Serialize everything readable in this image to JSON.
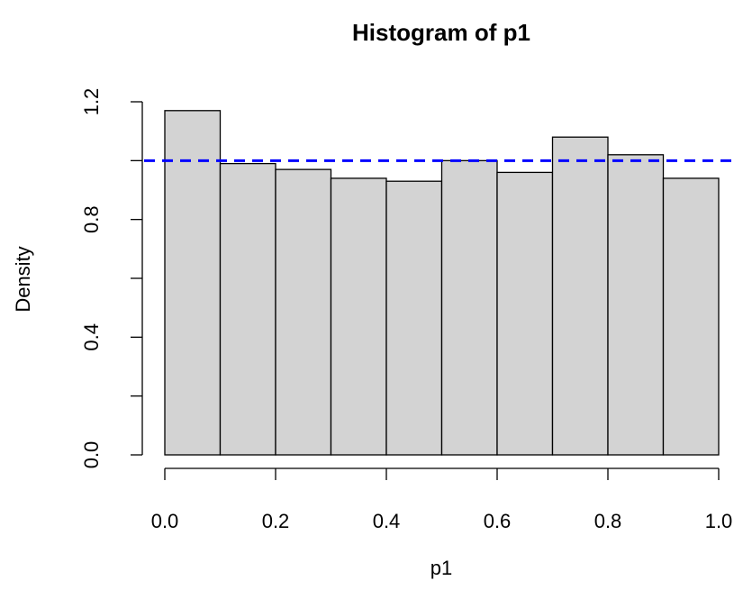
{
  "chart_data": {
    "type": "histogram",
    "title": "Histogram of p1",
    "x_label": "p1",
    "y_label": "Density",
    "bins": [
      0,
      0.1,
      0.2,
      0.3,
      0.4,
      0.5,
      0.6,
      0.7,
      0.8,
      0.9,
      1.0
    ],
    "values": [
      1.17,
      0.99,
      0.97,
      0.94,
      0.93,
      1.0,
      0.96,
      1.08,
      1.02,
      0.94
    ],
    "color": "#d3d3d3",
    "edge_color": "#000000",
    "xlim": [
      0,
      1
    ],
    "ylim": [
      0,
      1.2
    ],
    "xticks": [
      {
        "value": 0,
        "label": "0.0"
      },
      {
        "value": 0.2,
        "label": "0.2"
      },
      {
        "value": 0.4,
        "label": "0.4"
      },
      {
        "value": 0.6,
        "label": "0.6"
      },
      {
        "value": 0.8,
        "label": "0.8"
      },
      {
        "value": 1.0,
        "label": "1.0"
      }
    ],
    "yticks": [
      {
        "value": 0,
        "label": "0.0"
      },
      {
        "value": 0.4,
        "label": "0.4"
      },
      {
        "value": 0.8,
        "label": "0.8"
      },
      {
        "value": 1.2,
        "label": "1.2"
      }
    ],
    "yminor_ticks": [
      0.2,
      0.6,
      1.0
    ],
    "hline": {
      "value": 1.0,
      "color": "#0000ff",
      "dashed": true
    }
  }
}
